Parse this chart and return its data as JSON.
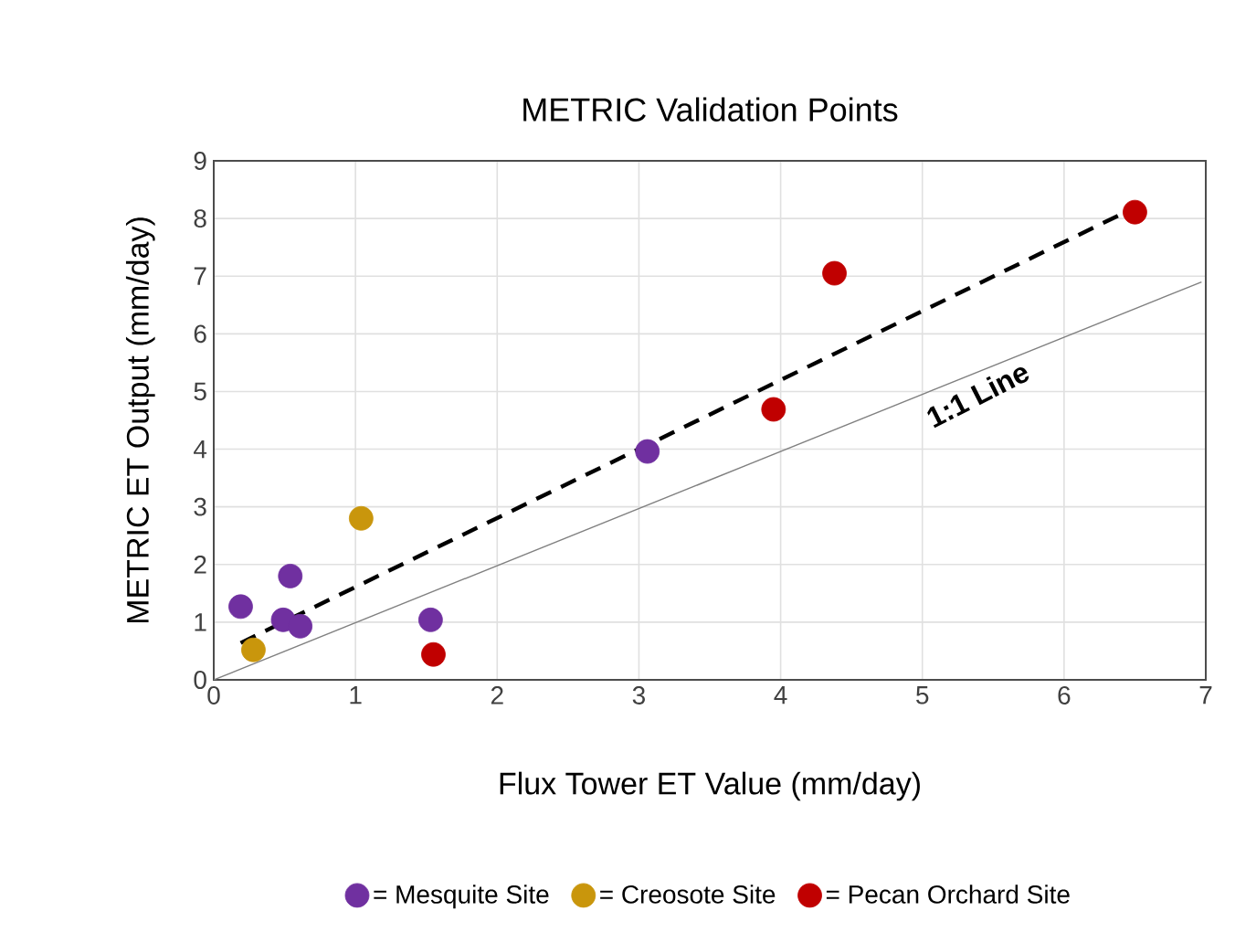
{
  "chart_data": {
    "type": "scatter",
    "title": "METRIC Validation Points",
    "xlabel": "Flux Tower ET Value (mm/day)",
    "ylabel": "METRIC ET Output (mm/day)",
    "xlim": [
      0,
      7
    ],
    "ylim": [
      0,
      9
    ],
    "xticks": [
      0,
      1,
      2,
      3,
      4,
      5,
      6,
      7
    ],
    "yticks": [
      0,
      1,
      2,
      3,
      4,
      5,
      6,
      7,
      8,
      9
    ],
    "grid": true,
    "legend": "bottom",
    "marker": "circle",
    "series": [
      {
        "name": "= Mesquite Site",
        "color": "#7030a0",
        "x": [
          0.19,
          0.54,
          0.49,
          0.61,
          1.53,
          3.06
        ],
        "values": [
          1.27,
          1.8,
          1.04,
          0.93,
          1.04,
          3.96
        ]
      },
      {
        "name": "= Creosote Site",
        "color": "#c9960c",
        "x": [
          0.28,
          1.04
        ],
        "values": [
          0.52,
          2.8
        ]
      },
      {
        "name": "= Pecan Orchard Site",
        "color": "#c00000",
        "x": [
          1.55,
          3.95,
          4.38,
          6.5
        ],
        "values": [
          0.44,
          4.69,
          7.05,
          8.11
        ]
      },
      {
        "type": "line",
        "color": "#000000",
        "line_style": "dashed",
        "marker": "none",
        "x": [
          0.19,
          6.5
        ],
        "values": [
          0.64,
          8.19
        ]
      },
      {
        "type": "line",
        "color": "#808080",
        "line_style": "solid",
        "marker": "none",
        "x": [
          0,
          6.97
        ],
        "values": [
          0,
          6.9
        ]
      }
    ],
    "annotations": [
      "1:1 Line"
    ]
  }
}
